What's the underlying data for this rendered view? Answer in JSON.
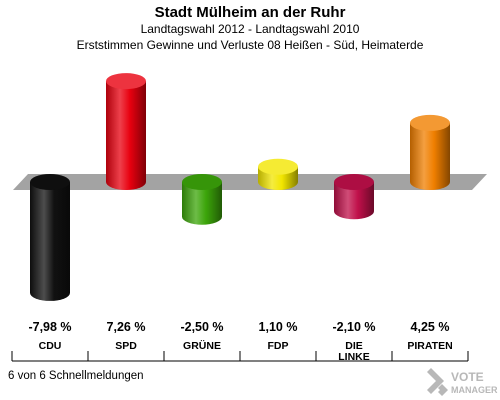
{
  "header": {
    "title": "Stadt Mülheim an der Ruhr",
    "subtitle": "Landtagswahl 2012 - Landtagswahl 2010",
    "caption": "Erststimmen Gewinne und Verluste 08 Heißen - Süd, Heimaterde"
  },
  "chart_data": {
    "type": "bar",
    "categories": [
      "CDU",
      "SPD",
      "GRÜNE",
      "FDP",
      "DIE LINKE",
      "PIRATEN"
    ],
    "values": [
      -7.98,
      7.26,
      -2.5,
      1.1,
      -2.1,
      4.25
    ],
    "value_labels": [
      "-7,98 %",
      "7,26 %",
      "-2,50 %",
      "1,10 %",
      "-2,10 %",
      "4,25 %"
    ],
    "colors": [
      "#111111",
      "#e8000f",
      "#3ca50a",
      "#f2e600",
      "#c0104a",
      "#f07f00"
    ],
    "title": "",
    "xlabel": "",
    "ylabel": "",
    "unit": "%",
    "grid": false,
    "legend": "none"
  },
  "footer": {
    "status": "6 von 6 Schnellmeldungen"
  },
  "logo": {
    "line1": "VOTE",
    "line2": "MANAGER"
  }
}
